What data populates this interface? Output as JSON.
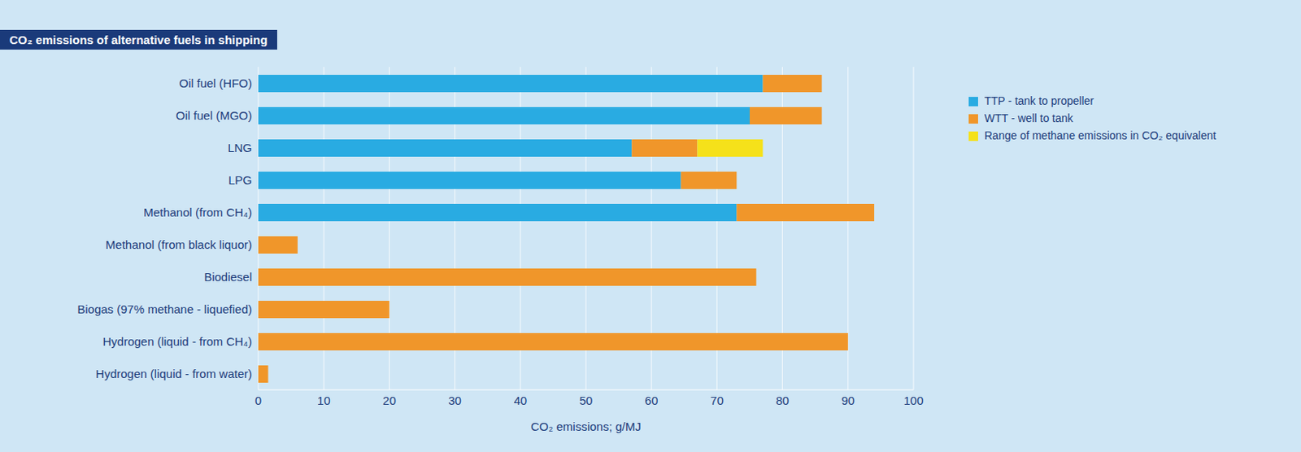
{
  "chart_data": {
    "type": "bar",
    "title": "CO₂ emissions of alternative fuels in shipping",
    "orientation": "horizontal",
    "stacked": true,
    "grid": true,
    "legend": "right",
    "x_label": "CO₂ emissions; g/MJ",
    "categories": [
      "Oil fuel (HFO)",
      "Oil fuel (MGO)",
      "LNG",
      "LPG",
      "Methanol (from CH₄)",
      "Methanol (from black liquor)",
      "Biodiesel",
      "Biogas (97% methane - liquefied)",
      "Hydrogen (liquid - from CH₄)",
      "Hydrogen (liquid - from water)"
    ],
    "series": [
      {
        "name": "TTP - tank to propeller",
        "color": "#29abe2",
        "values": [
          77,
          75,
          57,
          64.5,
          73,
          null,
          null,
          null,
          null,
          null
        ]
      },
      {
        "name": "WTT - well to tank",
        "color": "#f0962a",
        "values": [
          9,
          11,
          10,
          8.5,
          21,
          6,
          76,
          20,
          90,
          1.5
        ]
      },
      {
        "name": "Range of methane emissions in CO₂ equivalent",
        "color": "#f5e11a",
        "values": [
          null,
          null,
          10,
          null,
          null,
          null,
          null,
          null,
          null,
          null
        ]
      }
    ],
    "xlim": [
      0,
      100
    ],
    "xticks": [
      0,
      10,
      20,
      30,
      40,
      50,
      60,
      70,
      80,
      90,
      100
    ]
  }
}
